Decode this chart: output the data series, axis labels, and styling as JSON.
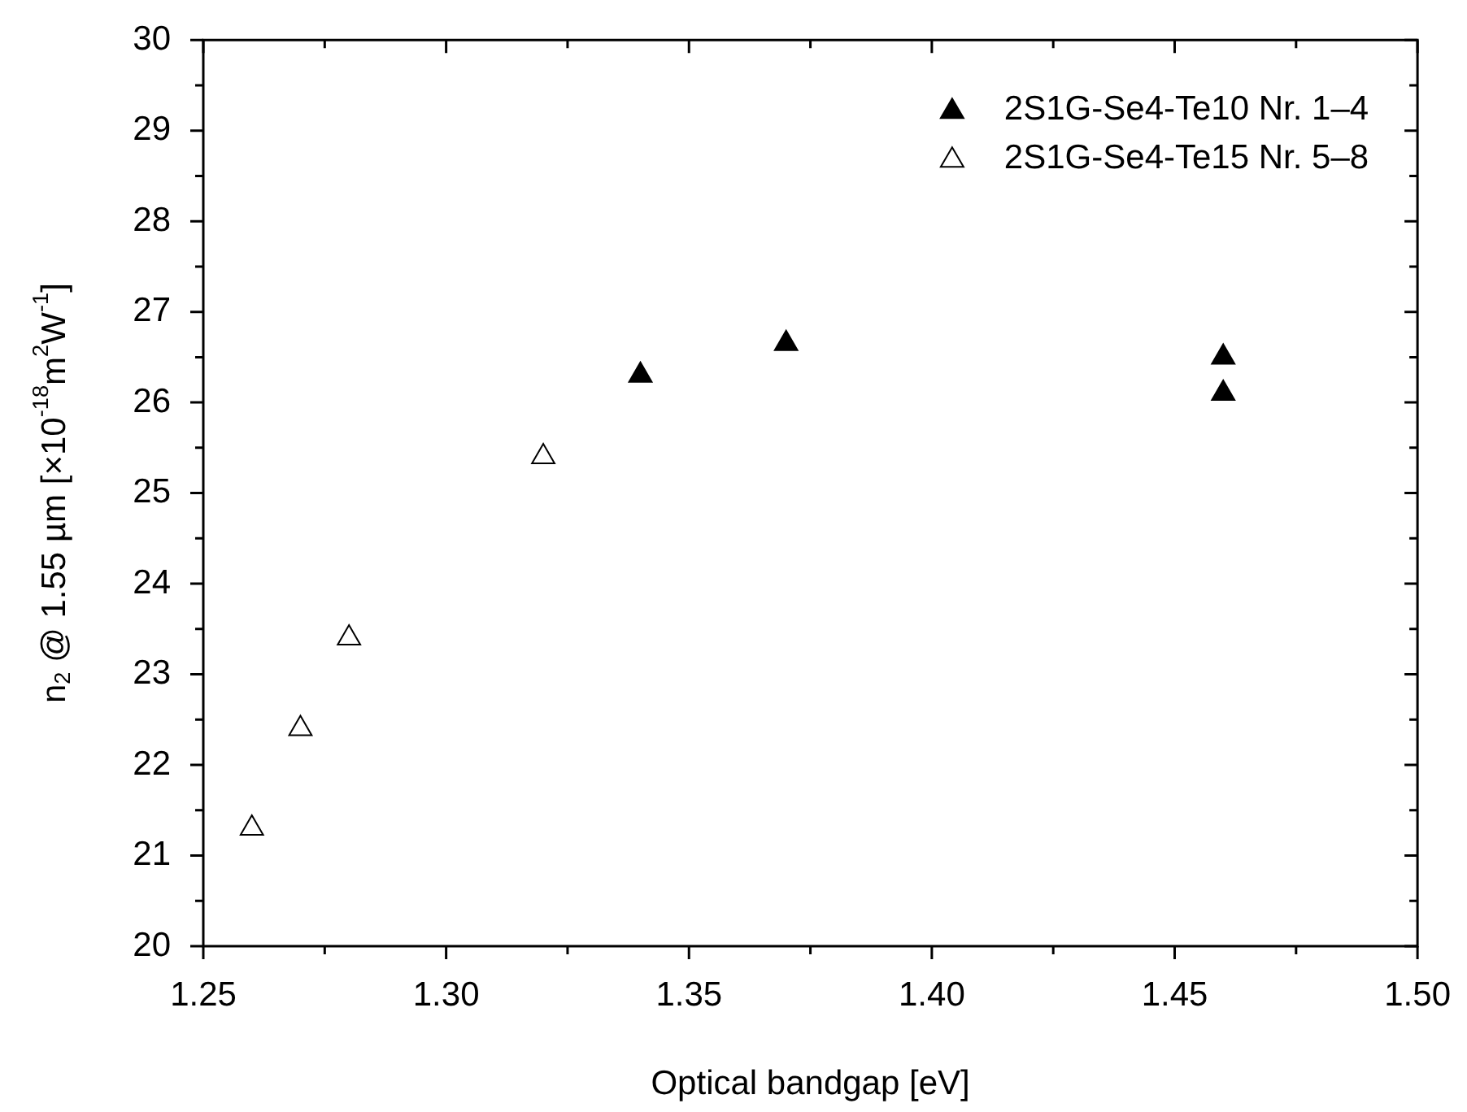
{
  "chart_data": {
    "type": "scatter",
    "xlabel": "Optical bandgap [eV]",
    "ylabel": "n$_{2}$ @ 1.55 µm [×10$^{-18}$m$^{2}$W$^{-1}$]",
    "legend": "top right",
    "marker": "triangle",
    "xlim": [
      1.25,
      1.5
    ],
    "ylim": [
      20,
      30
    ],
    "xticks": [
      {
        "value": 1.25,
        "label": "1.25"
      },
      {
        "value": 1.275,
        "label": null
      },
      {
        "value": 1.3,
        "label": "1.30"
      },
      {
        "value": 1.325,
        "label": null
      },
      {
        "value": 1.35,
        "label": "1.35"
      },
      {
        "value": 1.375,
        "label": null
      },
      {
        "value": 1.4,
        "label": "1.40"
      },
      {
        "value": 1.425,
        "label": null
      },
      {
        "value": 1.45,
        "label": "1.45"
      },
      {
        "value": 1.475,
        "label": null
      },
      {
        "value": 1.5,
        "label": "1.50"
      }
    ],
    "yticks": [
      20,
      {
        "value": 20.5,
        "label": null
      },
      21,
      {
        "value": 21.5,
        "label": null
      },
      22,
      {
        "value": 22.5,
        "label": null
      },
      23,
      {
        "value": 23.5,
        "label": null
      },
      24,
      {
        "value": 24.5,
        "label": null
      },
      25,
      {
        "value": 25.5,
        "label": null
      },
      26,
      {
        "value": 26.5,
        "label": null
      },
      27,
      {
        "value": 27.5,
        "label": null
      },
      28,
      {
        "value": 28.5,
        "label": null
      },
      29,
      {
        "value": 29.5,
        "label": null
      },
      30
    ],
    "series": [
      {
        "name": "2S1G-Se4-Te10 Nr. 1–4",
        "color": "#000000",
        "x": [
          1.34,
          1.37,
          1.46,
          1.46
        ],
        "values": [
          26.3,
          26.65,
          26.5,
          26.1
        ]
      },
      {
        "name": "2S1G-Se4-Te15 Nr. 5–8",
        "color": "#ffffff",
        "x": [
          1.26,
          1.27,
          1.28,
          1.32
        ],
        "values": [
          21.3,
          22.4,
          23.4,
          25.4
        ]
      }
    ]
  }
}
